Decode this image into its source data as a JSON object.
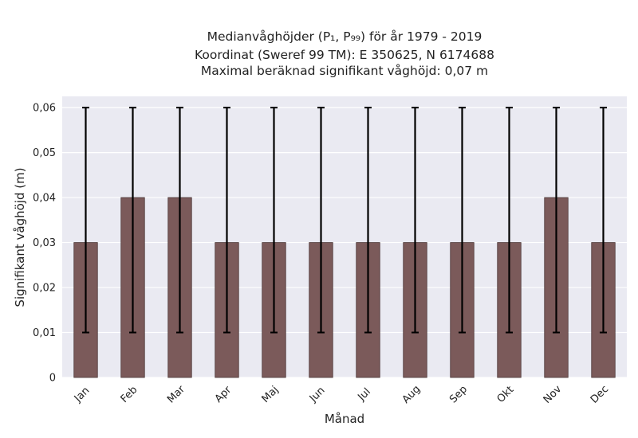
{
  "chart_data": {
    "type": "bar",
    "title_lines": [
      "Medianvåghöjder (P₁, P₉₉) för år 1979 - 2019",
      "Koordinat (Sweref 99 TM): E 350625, N 6174688",
      "Maximal beräknad signifikant våghöjd: 0,07 m"
    ],
    "xlabel": "Månad",
    "ylabel": "Signifikant våghöjd (m)",
    "categories": [
      "Jan",
      "Feb",
      "Mar",
      "Apr",
      "Maj",
      "Jun",
      "Jul",
      "Aug",
      "Sep",
      "Okt",
      "Nov",
      "Dec"
    ],
    "values": [
      0.03,
      0.04,
      0.04,
      0.03,
      0.03,
      0.03,
      0.03,
      0.03,
      0.03,
      0.03,
      0.04,
      0.03
    ],
    "error_low": [
      0.01,
      0.01,
      0.01,
      0.01,
      0.01,
      0.01,
      0.01,
      0.01,
      0.01,
      0.01,
      0.01,
      0.01
    ],
    "error_high": [
      0.06,
      0.06,
      0.06,
      0.06,
      0.06,
      0.06,
      0.06,
      0.06,
      0.06,
      0.06,
      0.06,
      0.06
    ],
    "ylim": [
      0,
      0.0625
    ],
    "yticks": [
      0,
      0.01,
      0.02,
      0.03,
      0.04,
      0.05,
      0.06
    ],
    "ytick_labels": [
      "0",
      "0,01",
      "0,02",
      "0,03",
      "0,04",
      "0,05",
      "0,06"
    ],
    "grid": true,
    "colors": {
      "bar": "#7b5a5a",
      "bar_edge": "#4a3535",
      "error": "#000000",
      "plot_bg": "#eaeaf2",
      "grid": "#ffffff"
    }
  }
}
